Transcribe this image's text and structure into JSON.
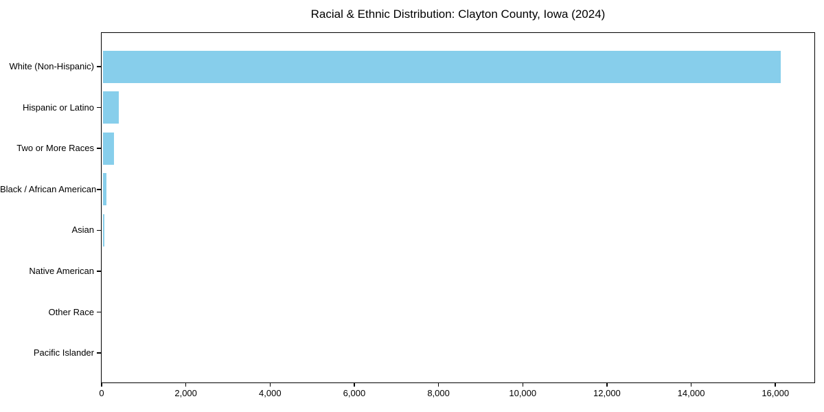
{
  "chart_data": {
    "type": "bar",
    "orientation": "horizontal",
    "title": "Racial & Ethnic Distribution: Clayton County, Iowa (2024)",
    "xlabel": "",
    "ylabel": "",
    "categories": [
      "White (Non-Hispanic)",
      "Hispanic or Latino",
      "Two or More Races",
      "Black / African American",
      "Asian",
      "Native American",
      "Other Race",
      "Pacific Islander"
    ],
    "values": [
      16120,
      400,
      295,
      120,
      70,
      15,
      10,
      5
    ],
    "xlim": [
      0,
      16926
    ],
    "xticks": [
      0,
      2000,
      4000,
      6000,
      8000,
      10000,
      12000,
      14000,
      16000
    ],
    "xtick_labels": [
      "0",
      "2,000",
      "4,000",
      "6,000",
      "8,000",
      "10,000",
      "12,000",
      "14,000",
      "16,000"
    ],
    "bar_color": "#87CEEB",
    "text_color": "#000000",
    "grid": false,
    "legend": null
  }
}
